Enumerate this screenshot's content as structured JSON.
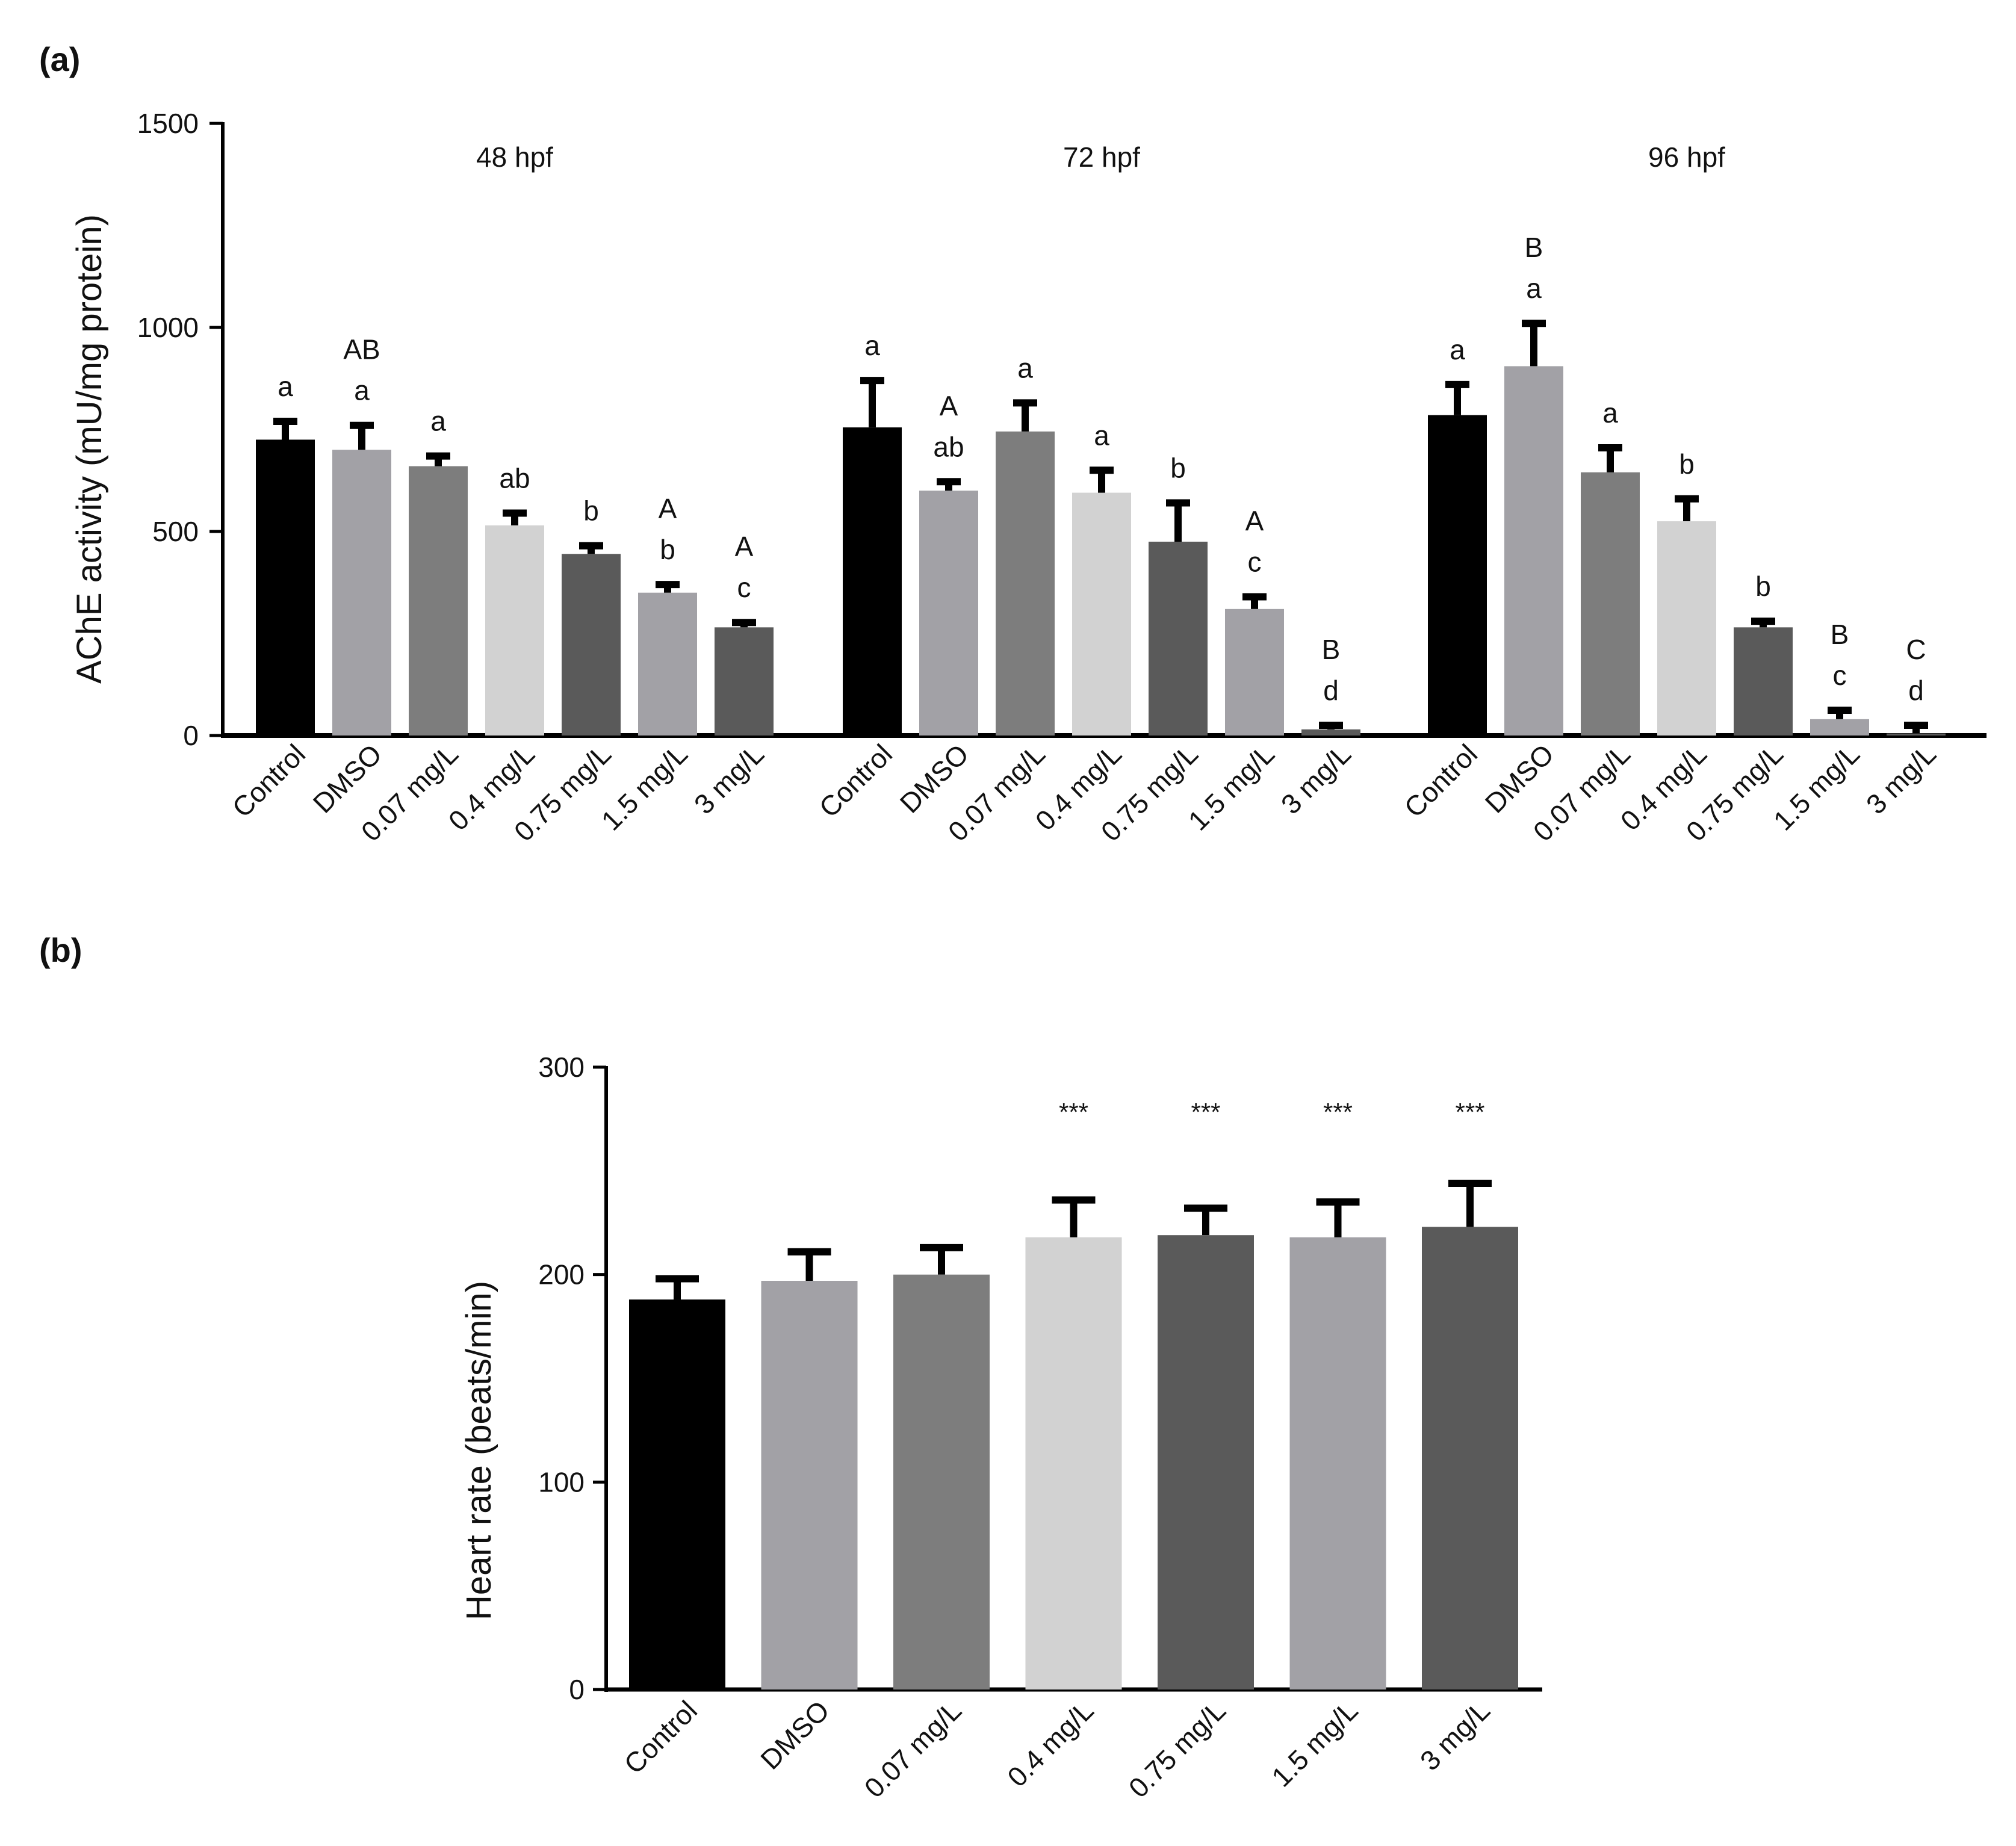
{
  "chart_data": [
    {
      "panel": "(a)",
      "type": "bar",
      "ylabel": "AChE activity (mU/mg protein)",
      "ylim": [
        0,
        1500
      ],
      "yticks": [
        0,
        500,
        1000,
        1500
      ],
      "groups": [
        {
          "label": "48 hpf",
          "categories": [
            "Control",
            "DMSO",
            "0.07 mg/L",
            "0.4 mg/L",
            "0.75 mg/L",
            "1.5 mg/L",
            "3 mg/L"
          ],
          "values": [
            725,
            700,
            660,
            515,
            445,
            350,
            265
          ],
          "errors": [
            45,
            60,
            25,
            30,
            20,
            20,
            12
          ],
          "letters": [
            [
              "a"
            ],
            [
              "AB",
              "a"
            ],
            [
              "a"
            ],
            [
              "ab"
            ],
            [
              "b"
            ],
            [
              "A",
              "b"
            ],
            [
              "A",
              "c"
            ]
          ]
        },
        {
          "label": "72 hpf",
          "categories": [
            "Control",
            "DMSO",
            "0.07 mg/L",
            "0.4 mg/L",
            "0.75 mg/L",
            "1.5 mg/L",
            "3 mg/L"
          ],
          "values": [
            755,
            600,
            745,
            595,
            475,
            310,
            15
          ],
          "errors": [
            115,
            22,
            70,
            55,
            95,
            30,
            10
          ],
          "letters": [
            [
              "a"
            ],
            [
              "A",
              "ab"
            ],
            [
              "a"
            ],
            [
              "a"
            ],
            [
              "b"
            ],
            [
              "A",
              "c"
            ],
            [
              "B",
              "d"
            ]
          ]
        },
        {
          "label": "96 hpf",
          "categories": [
            "Control",
            "DMSO",
            "0.07 mg/L",
            "0.4 mg/L",
            "0.75 mg/L",
            "1.5 mg/L",
            "3 mg/L"
          ],
          "values": [
            785,
            905,
            645,
            525,
            265,
            40,
            5
          ],
          "errors": [
            75,
            105,
            60,
            55,
            15,
            22,
            20
          ],
          "letters": [
            [
              "a"
            ],
            [
              "B",
              "a"
            ],
            [
              "a"
            ],
            [
              "b"
            ],
            [
              "b"
            ],
            [
              "B",
              "c"
            ],
            [
              "C",
              "d"
            ]
          ]
        }
      ],
      "bar_colors": [
        "#000000",
        "#a2a1a6",
        "#7d7d7d",
        "#d2d2d2",
        "#5a5a5a",
        "#a2a1a6",
        "#5a5a5a"
      ]
    },
    {
      "panel": "(b)",
      "type": "bar",
      "ylabel": "Heart rate (beats/min)",
      "ylim": [
        0,
        300
      ],
      "yticks": [
        0,
        100,
        200,
        300
      ],
      "categories": [
        "Control",
        "DMSO",
        "0.07 mg/L",
        "0.4 mg/L",
        "0.75 mg/L",
        "1.5 mg/L",
        "3 mg/L"
      ],
      "values": [
        188,
        197,
        200,
        218,
        219,
        218,
        223
      ],
      "errors": [
        10,
        14,
        13,
        18,
        13,
        17,
        21
      ],
      "annotations": [
        "",
        "",
        "",
        "***",
        "***",
        "***",
        "***"
      ],
      "bar_colors": [
        "#000000",
        "#a2a1a6",
        "#7d7d7d",
        "#d2d2d2",
        "#5a5a5a",
        "#a2a1a6",
        "#5a5a5a"
      ]
    }
  ]
}
